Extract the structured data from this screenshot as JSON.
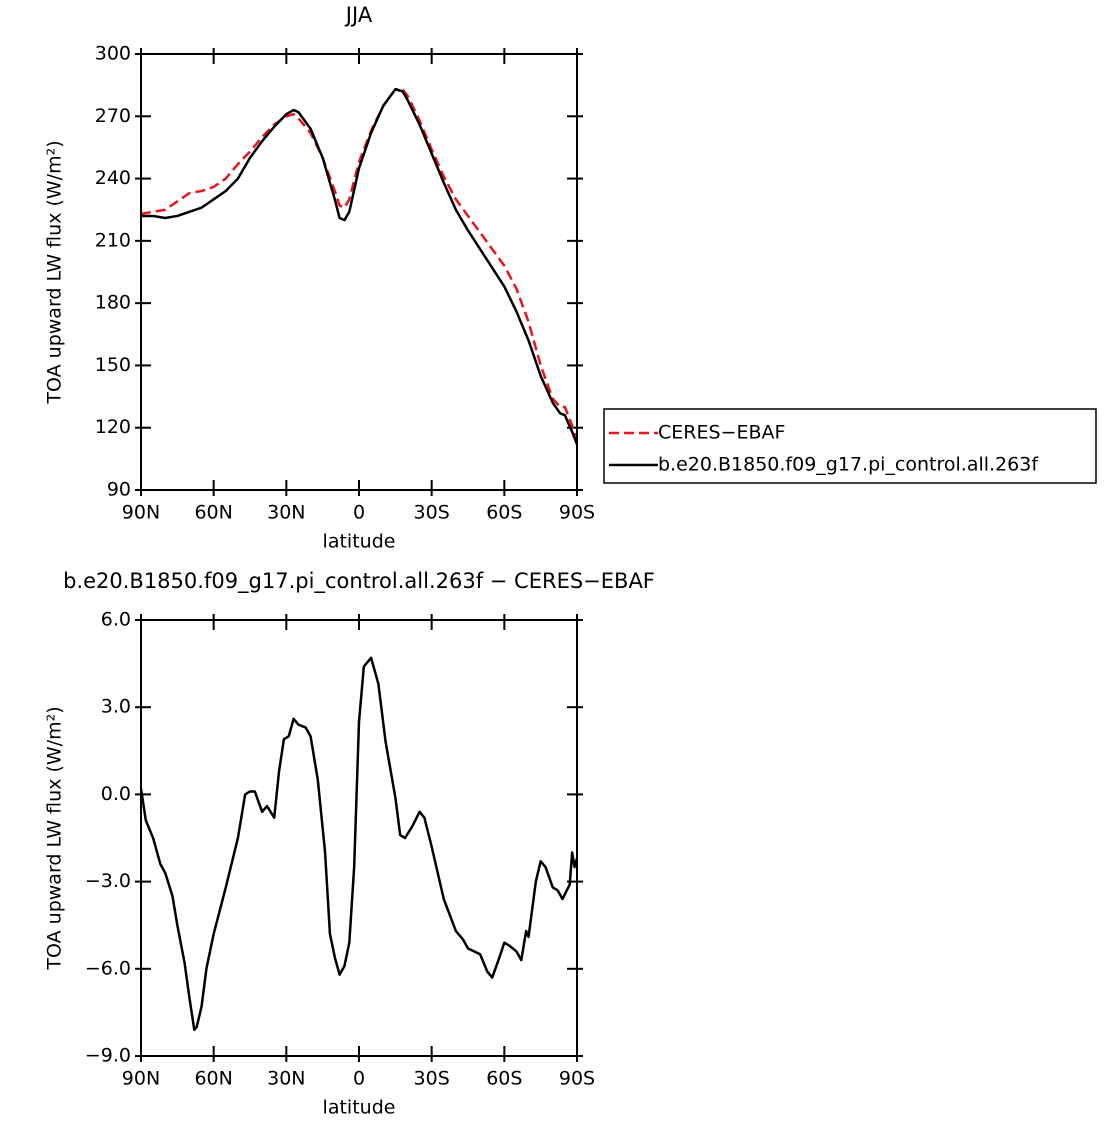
{
  "chart_data": [
    {
      "type": "line",
      "title": "JJA",
      "xlabel": "latitude",
      "ylabel": "TOA upward LW flux (W/m²)",
      "x": [
        90,
        85,
        80,
        75,
        70,
        65,
        60,
        55,
        50,
        45,
        40,
        35,
        30,
        27,
        25,
        20,
        15,
        10,
        8,
        6,
        4,
        0,
        -5,
        -10,
        -15,
        -18,
        -20,
        -25,
        -30,
        -35,
        -40,
        -45,
        -50,
        -55,
        -60,
        -65,
        -70,
        -75,
        -80,
        -83,
        -85,
        -88,
        -90
      ],
      "series": [
        {
          "name": "CERES−EBAF",
          "color": "#e8141c",
          "dash": "dashed",
          "values": [
            223,
            224,
            225,
            229,
            233,
            234,
            236,
            240,
            247,
            253,
            260,
            266,
            270,
            271,
            269,
            262,
            250,
            234,
            227,
            226,
            230,
            248,
            263,
            275,
            283,
            283,
            280,
            268,
            254,
            241,
            230,
            222,
            214,
            206,
            198,
            187,
            171,
            150,
            134,
            130,
            130,
            121,
            114
          ]
        },
        {
          "name": "b.e20.B1850.f09_g17.pi_control.all.263f",
          "color": "#000000",
          "dash": "solid",
          "values": [
            222,
            222,
            221,
            222,
            224,
            226,
            230,
            234,
            240,
            250,
            258,
            265,
            271,
            273,
            272,
            264,
            250,
            230,
            221,
            220,
            224,
            245,
            262,
            275,
            283,
            282,
            278,
            266,
            252,
            238,
            225,
            215,
            206,
            197,
            188,
            176,
            162,
            145,
            132,
            127,
            126,
            118,
            112
          ]
        }
      ],
      "xlim": [
        90,
        -90
      ],
      "xticks": [
        {
          "value": 90,
          "label": "90N"
        },
        {
          "value": 60,
          "label": "60N"
        },
        {
          "value": 30,
          "label": "30N"
        },
        0,
        {
          "value": -30,
          "label": "30S"
        },
        {
          "value": -60,
          "label": "60S"
        },
        {
          "value": -90,
          "label": "90S"
        }
      ],
      "ylim": [
        90,
        300
      ],
      "yticks": [
        90,
        120,
        150,
        180,
        210,
        240,
        270,
        300
      ],
      "legend": "right"
    },
    {
      "type": "line",
      "title": "b.e20.B1850.f09_g17.pi_control.all.263f − CERES−EBAF",
      "xlabel": "latitude",
      "ylabel": "TOA upward LW flux (W/m²)",
      "x": [
        90,
        88,
        85,
        82,
        80,
        77,
        75,
        72,
        70,
        68,
        67,
        65,
        63,
        60,
        55,
        50,
        47,
        45,
        43,
        40,
        38,
        35,
        33,
        31,
        29,
        27,
        25,
        22,
        20,
        17,
        14,
        12,
        10,
        8,
        6,
        4,
        2,
        0,
        -2,
        -5,
        -8,
        -11,
        -15,
        -17,
        -19,
        -22,
        -25,
        -27,
        -30,
        -35,
        -40,
        -43,
        -45,
        -50,
        -53,
        -55,
        -58,
        -60,
        -62,
        -65,
        -67,
        -69,
        -70,
        -73,
        -75,
        -77,
        -80,
        -82,
        -84,
        -87,
        -88,
        -89,
        -90
      ],
      "series": [
        {
          "name": "b.e20.B1850.f09_g17.pi_control.all.263f − CERES−EBAF",
          "color": "#000000",
          "dash": "solid",
          "values": [
            0.2,
            -0.9,
            -1.5,
            -2.4,
            -2.7,
            -3.5,
            -4.5,
            -5.8,
            -7,
            -8.1,
            -8,
            -7.3,
            -6,
            -4.8,
            -3.2,
            -1.5,
            0,
            0.1,
            0.1,
            -0.6,
            -0.4,
            -0.8,
            0.8,
            1.9,
            2,
            2.6,
            2.4,
            2.3,
            2,
            0.5,
            -2,
            -4.8,
            -5.6,
            -6.2,
            -5.9,
            -5.1,
            -2.5,
            2.5,
            4.4,
            4.7,
            3.8,
            1.8,
            -0.1,
            -1.4,
            -1.5,
            -1.1,
            -0.6,
            -0.8,
            -1.8,
            -3.6,
            -4.7,
            -5,
            -5.3,
            -5.5,
            -6.1,
            -6.3,
            -5.6,
            -5.1,
            -5.2,
            -5.4,
            -5.7,
            -4.7,
            -4.9,
            -3,
            -2.3,
            -2.5,
            -3.2,
            -3.3,
            -3.6,
            -3.1,
            -2,
            -2.5,
            -2.2
          ]
        }
      ],
      "xlim": [
        90,
        -90
      ],
      "xticks": [
        {
          "value": 90,
          "label": "90N"
        },
        {
          "value": 60,
          "label": "60N"
        },
        {
          "value": 30,
          "label": "30N"
        },
        0,
        {
          "value": -30,
          "label": "30S"
        },
        {
          "value": -60,
          "label": "60S"
        },
        {
          "value": -90,
          "label": "90S"
        }
      ],
      "ylim": [
        -9,
        6
      ],
      "yticks": [
        {
          "value": -9,
          "label": "−9.0"
        },
        {
          "value": -6,
          "label": "−6.0"
        },
        {
          "value": -3,
          "label": "−3.0"
        },
        {
          "value": 0,
          "label": "0.0"
        },
        {
          "value": 3,
          "label": "3.0"
        },
        {
          "value": 6,
          "label": "6.0"
        }
      ]
    }
  ]
}
